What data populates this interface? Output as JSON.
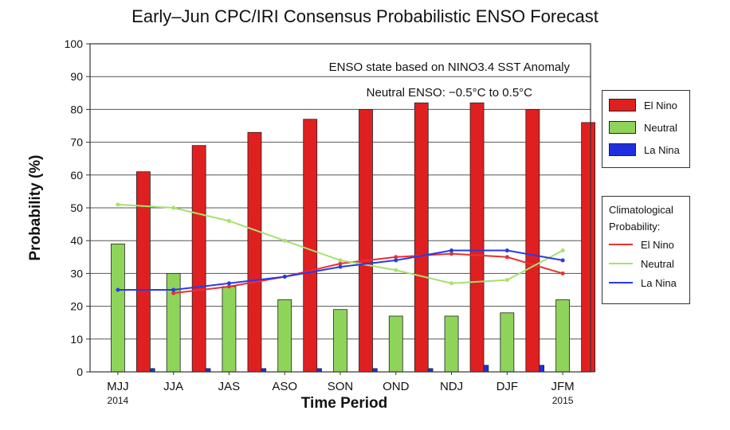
{
  "chart_data": {
    "type": "bar",
    "title": "Early–Jun CPC/IRI Consensus Probabilistic ENSO Forecast",
    "xlabel": "Time Period",
    "ylabel": "Probability (%)",
    "ylim": [
      0,
      100
    ],
    "yticks": [
      0,
      10,
      20,
      30,
      40,
      50,
      60,
      70,
      80,
      90,
      100
    ],
    "grid": true,
    "categories": [
      "MJJ",
      "JJA",
      "JAS",
      "ASO",
      "SON",
      "OND",
      "NDJ",
      "DJF",
      "JFM"
    ],
    "category_sublabels": [
      "2014",
      "",
      "",
      "",
      "",
      "",
      "",
      "",
      "2015"
    ],
    "series": [
      {
        "name": "La Nina",
        "color": "#1f2fe0",
        "values": [
          0,
          1,
          1,
          1,
          1,
          1,
          1,
          2,
          2
        ]
      },
      {
        "name": "Neutral",
        "color": "#8fd45a",
        "values": [
          39,
          30,
          26,
          22,
          19,
          17,
          17,
          18,
          22
        ]
      },
      {
        "name": "El Nino",
        "color": "#e02020",
        "values": [
          61,
          69,
          73,
          77,
          80,
          82,
          82,
          80,
          76
        ]
      }
    ],
    "climatology": {
      "title": "Climatological Probability:",
      "series": [
        {
          "name": "El Nino",
          "color": "#e83030",
          "values": [
            null,
            24,
            26,
            29,
            33,
            35,
            36,
            35,
            30
          ]
        },
        {
          "name": "Neutral",
          "color": "#a8e070",
          "values": [
            51,
            50,
            46,
            40,
            34,
            31,
            27,
            28,
            37
          ]
        },
        {
          "name": "La Nina",
          "color": "#2a3ae8",
          "values": [
            25,
            25,
            27,
            29,
            32,
            34,
            37,
            37,
            34
          ]
        }
      ]
    },
    "annotations": [
      "ENSO state based on NINO3.4 SST Anomaly",
      "Neutral ENSO: −0.5°C to 0.5°C"
    ]
  },
  "legend": {
    "bars": [
      {
        "label": "El Nino",
        "color": "#e02020"
      },
      {
        "label": "Neutral",
        "color": "#8fd45a"
      },
      {
        "label": "La Nina",
        "color": "#1f2fe0"
      }
    ],
    "clim_title_1": "Climatological",
    "clim_title_2": "Probability:",
    "lines": [
      {
        "label": "El Nino",
        "color": "#e83030"
      },
      {
        "label": "Neutral",
        "color": "#a8e070"
      },
      {
        "label": "La Nina",
        "color": "#2a3ae8"
      }
    ]
  }
}
